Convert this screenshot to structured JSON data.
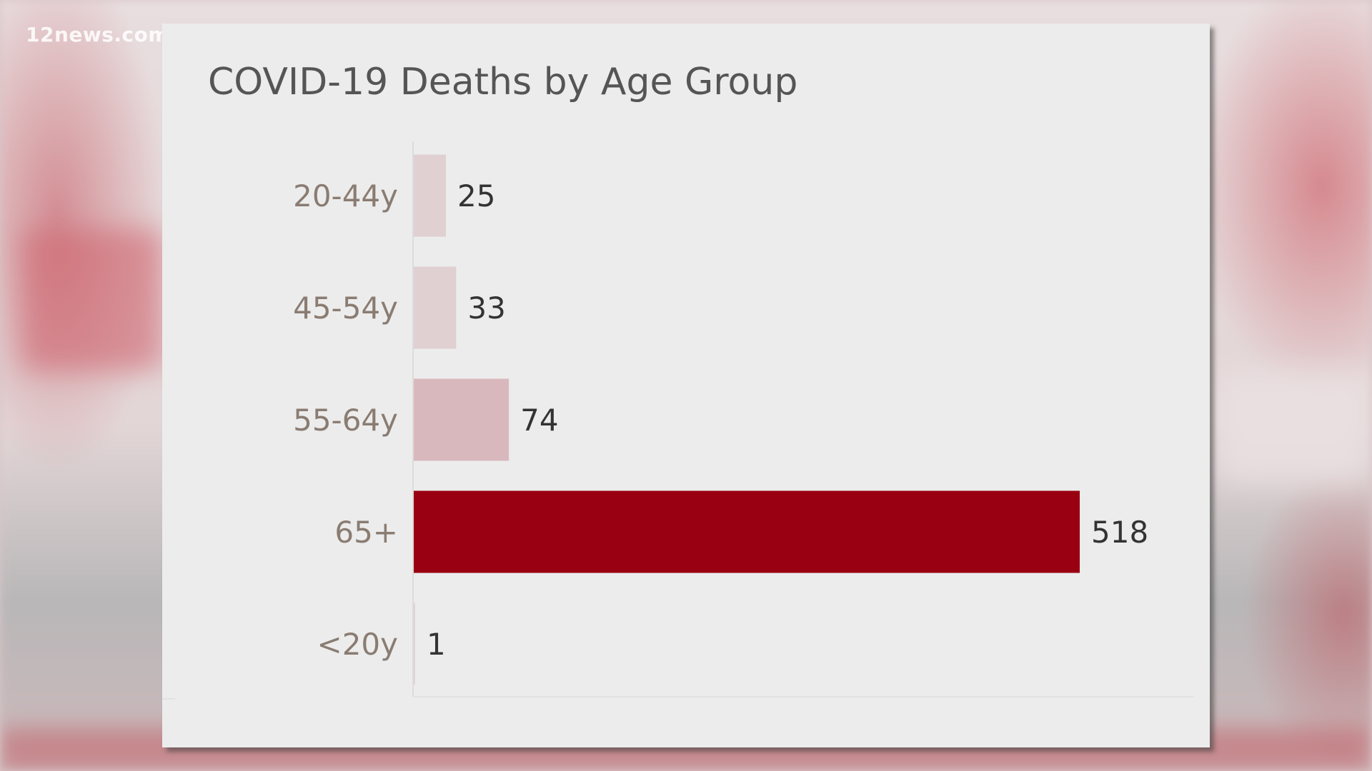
{
  "watermark": "12news.com",
  "colors": {
    "highlight_bar": "#990011",
    "light_bar": "#e0d0d2",
    "medium_bar": "#d9b8bd",
    "card_background": "#ececec"
  },
  "chart_data": {
    "type": "bar",
    "orientation": "horizontal",
    "title": "COVID-19 Deaths by Age Group",
    "xlabel": "",
    "ylabel": "",
    "categories": [
      "20-44y",
      "45-54y",
      "55-64y",
      "65+",
      "<20y"
    ],
    "values": [
      25,
      33,
      74,
      518,
      1
    ],
    "data_labels": [
      "25",
      "33",
      "74",
      "518",
      "1"
    ],
    "xlim": [
      0,
      518
    ],
    "grid": false,
    "legend": "none"
  }
}
